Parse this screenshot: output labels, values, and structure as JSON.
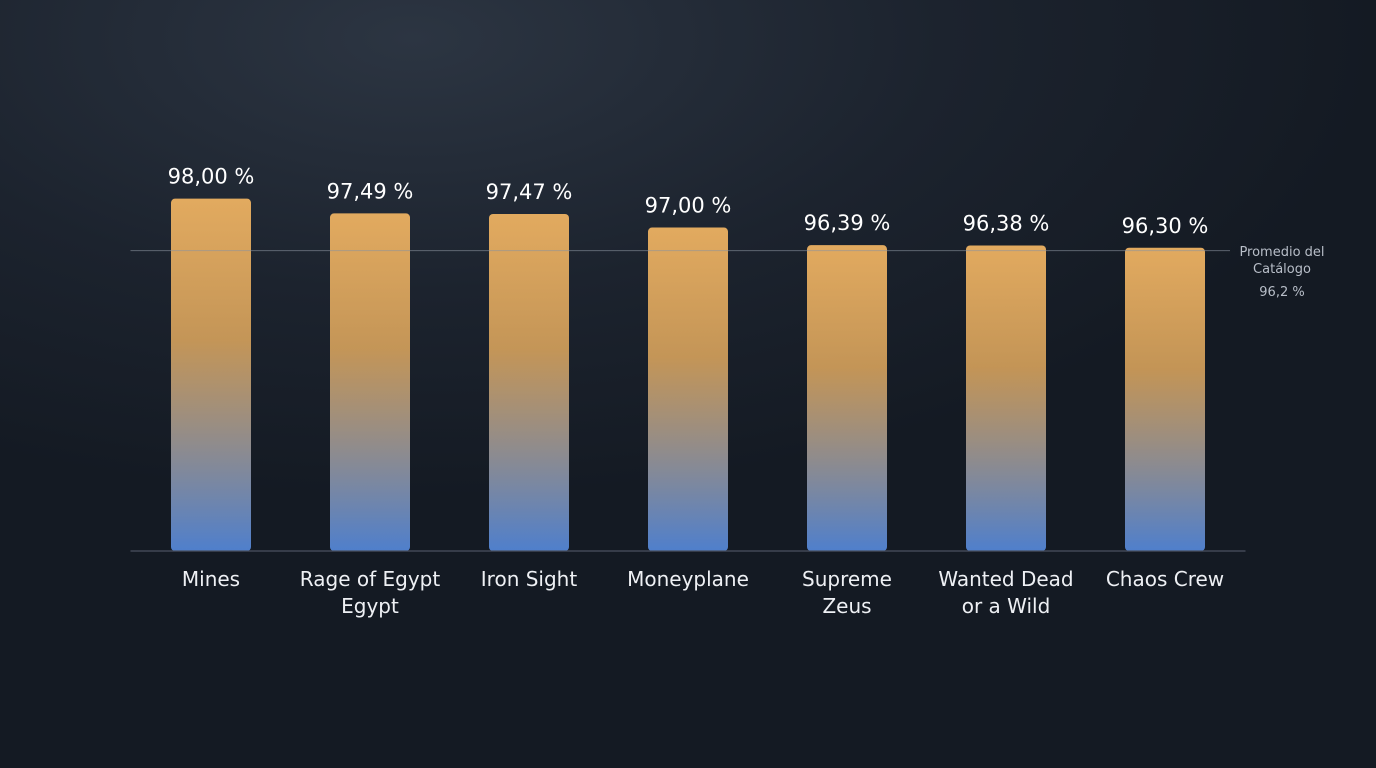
{
  "chart_data": {
    "type": "bar",
    "categories": [
      "Mines",
      "Rage of Egypt Egypt",
      "Iron Sight",
      "Moneyplane",
      "Supreme Zeus",
      "Wanted Dead or a Wild",
      "Chaos Crew"
    ],
    "values": [
      98.0,
      97.49,
      97.47,
      97.0,
      96.39,
      96.38,
      96.3
    ],
    "value_labels": [
      "98,00 %",
      "97,49 %",
      "97,47 %",
      "97,00 %",
      "96,39 %",
      "96,38 %",
      "96,30 %"
    ],
    "colors": [
      "#e2aa5f",
      "#4f7fcc"
    ],
    "ylim": [
      85.8,
      98.3
    ],
    "reference_line": {
      "label": "Promedio del Catálogo",
      "value": 96.2,
      "value_label": "96,2 %"
    }
  }
}
